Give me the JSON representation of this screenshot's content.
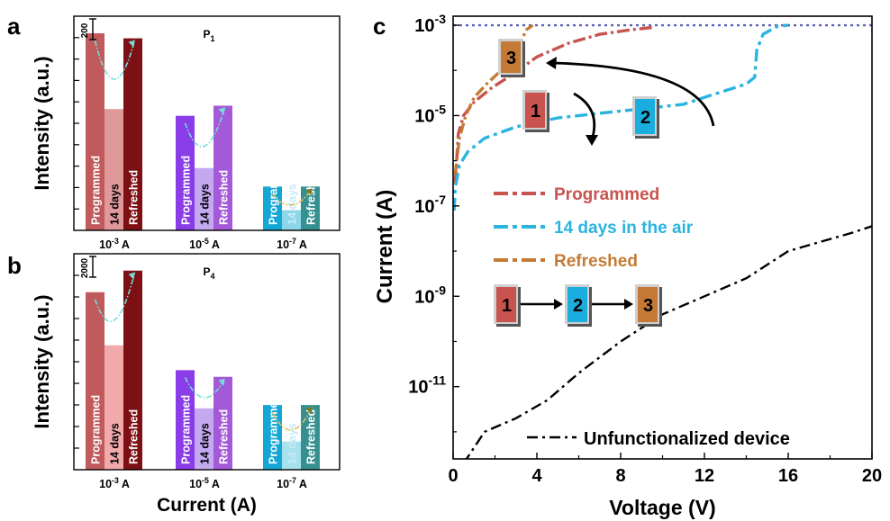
{
  "chart_data": [
    {
      "panel": "a",
      "type": "bar",
      "title": "P1",
      "ylabel": "Intensity (a.u.)",
      "xlabel": "",
      "scale_bar_label": "200",
      "groups": [
        {
          "label": "10-3 A",
          "bars": [
            {
              "name": "Programmed",
              "value": 1170,
              "color": "#c05a5c"
            },
            {
              "name": "14 days",
              "value": 720,
              "color": "#e0999b"
            },
            {
              "name": "Refreshed",
              "value": 1140,
              "color": "#7d1014"
            }
          ]
        },
        {
          "label": "10-5 A",
          "bars": [
            {
              "name": "Programmed",
              "value": 680,
              "color": "#8a3ce8"
            },
            {
              "name": "14 days",
              "value": 370,
              "color": "#c4a8f0"
            },
            {
              "name": "Refreshed",
              "value": 740,
              "color": "#a45ad8"
            }
          ]
        },
        {
          "label": "10-7 A",
          "bars": [
            {
              "name": "Programmed",
              "value": 260,
              "color": "#14a7d6"
            },
            {
              "name": "14 days",
              "value": 120,
              "color": "#8dd6ea"
            },
            {
              "name": "Refreshed",
              "value": 260,
              "color": "#35908f"
            }
          ]
        }
      ],
      "ylim": [
        0,
        1250
      ]
    },
    {
      "panel": "b",
      "type": "bar",
      "title": "P4",
      "ylabel": "Intensity (a.u.)",
      "xlabel": "Current (A)",
      "scale_bar_label": "2000",
      "groups": [
        {
          "label": "10-3 A",
          "bars": [
            {
              "name": "Programmed",
              "value": 10700,
              "color": "#c05a5c"
            },
            {
              "name": "14 days",
              "value": 7500,
              "color": "#f2a9ab"
            },
            {
              "name": "Refreshed",
              "value": 12000,
              "color": "#7d1014"
            }
          ]
        },
        {
          "label": "10-5 A",
          "bars": [
            {
              "name": "Programmed",
              "value": 6000,
              "color": "#8a3ce8"
            },
            {
              "name": "14 days",
              "value": 3700,
              "color": "#c4a8f0"
            },
            {
              "name": "Refreshed",
              "value": 5600,
              "color": "#a45ad8"
            }
          ]
        },
        {
          "label": "10-7 A",
          "bars": [
            {
              "name": "Programmed",
              "value": 3900,
              "color": "#14a7d6"
            },
            {
              "name": "14 days",
              "value": 1700,
              "color": "#a7e1ee"
            },
            {
              "name": "Refreshed",
              "value": 3900,
              "color": "#35908f"
            }
          ]
        }
      ],
      "ylim": [
        0,
        12800
      ]
    },
    {
      "panel": "c",
      "type": "line",
      "xlabel": "Voltage (V)",
      "ylabel": "Current (A)",
      "xlim": [
        0,
        20
      ],
      "ylim_log10": [
        -12.6,
        -2.8
      ],
      "xticks": [
        "0",
        "4",
        "8",
        "12",
        "16",
        "20"
      ],
      "yticks": [
        {
          "base": "10",
          "exp": "-11",
          "log": -11
        },
        {
          "base": "10",
          "exp": "-9",
          "log": -9
        },
        {
          "base": "10",
          "exp": "-7",
          "log": -7
        },
        {
          "base": "10",
          "exp": "-5",
          "log": -5
        },
        {
          "base": "10",
          "exp": "-3",
          "log": -3
        }
      ],
      "compliance_line_log": -3,
      "series": [
        {
          "name": "Programmed",
          "color": "#c8534f",
          "points": [
            [
              0.1,
              -6.5
            ],
            [
              0.25,
              -5.4
            ],
            [
              0.5,
              -5.0
            ],
            [
              1.0,
              -4.7
            ],
            [
              1.8,
              -4.4
            ],
            [
              2.8,
              -4.1
            ],
            [
              4.0,
              -3.7
            ],
            [
              5.5,
              -3.4
            ],
            [
              7.0,
              -3.2
            ],
            [
              8.5,
              -3.1
            ],
            [
              9.5,
              -3.05
            ]
          ]
        },
        {
          "name": "14 days in the air",
          "color": "#2bb4e0",
          "points": [
            [
              0.05,
              -7.1
            ],
            [
              0.1,
              -6.6
            ],
            [
              0.3,
              -6.1
            ],
            [
              0.7,
              -5.8
            ],
            [
              1.5,
              -5.5
            ],
            [
              3.0,
              -5.25
            ],
            [
              5.0,
              -5.05
            ],
            [
              7.0,
              -4.95
            ],
            [
              9.0,
              -4.85
            ],
            [
              11.0,
              -4.75
            ],
            [
              12.3,
              -4.55
            ],
            [
              13.0,
              -4.45
            ],
            [
              14.0,
              -4.3
            ],
            [
              14.4,
              -4.15
            ],
            [
              14.5,
              -3.55
            ],
            [
              14.8,
              -3.2
            ],
            [
              15.5,
              -3.02
            ],
            [
              16.0,
              -3.0
            ]
          ]
        },
        {
          "name": "Refreshed",
          "color": "#c47a35",
          "points": [
            [
              0.1,
              -6.3
            ],
            [
              0.3,
              -5.5
            ],
            [
              0.6,
              -5.0
            ],
            [
              1.0,
              -4.6
            ],
            [
              1.6,
              -4.3
            ],
            [
              2.3,
              -4.0
            ],
            [
              2.8,
              -3.7
            ],
            [
              3.2,
              -3.4
            ],
            [
              3.5,
              -3.1
            ],
            [
              3.8,
              -3.0
            ]
          ]
        },
        {
          "name": "Unfunctionalized device",
          "color": "#000000",
          "points": [
            [
              0.5,
              -12.7
            ],
            [
              1.5,
              -12.0
            ],
            [
              3.0,
              -11.7
            ],
            [
              4.5,
              -11.3
            ],
            [
              6.0,
              -10.7
            ],
            [
              8.0,
              -10.0
            ],
            [
              10.0,
              -9.4
            ],
            [
              12.0,
              -9.0
            ],
            [
              14.0,
              -8.6
            ],
            [
              15.0,
              -8.3
            ],
            [
              16.0,
              -8.0
            ],
            [
              17.5,
              -7.8
            ],
            [
              19.0,
              -7.6
            ],
            [
              20.0,
              -7.45
            ]
          ]
        }
      ],
      "legend": [
        {
          "label": "Programmed",
          "color": "#c8534f"
        },
        {
          "label": "14 days in the air",
          "color": "#2bb4e0"
        },
        {
          "label": "Refreshed",
          "color": "#c47a35"
        }
      ],
      "legend2": {
        "label": "Unfunctionalized device",
        "color": "#000000"
      },
      "boxes": [
        {
          "label": "1",
          "color": "#c8534f"
        },
        {
          "label": "2",
          "color": "#1aaee0"
        },
        {
          "label": "3",
          "color": "#c47a35"
        }
      ]
    }
  ],
  "panel_letters": {
    "a": "a",
    "b": "b",
    "c": "c"
  }
}
